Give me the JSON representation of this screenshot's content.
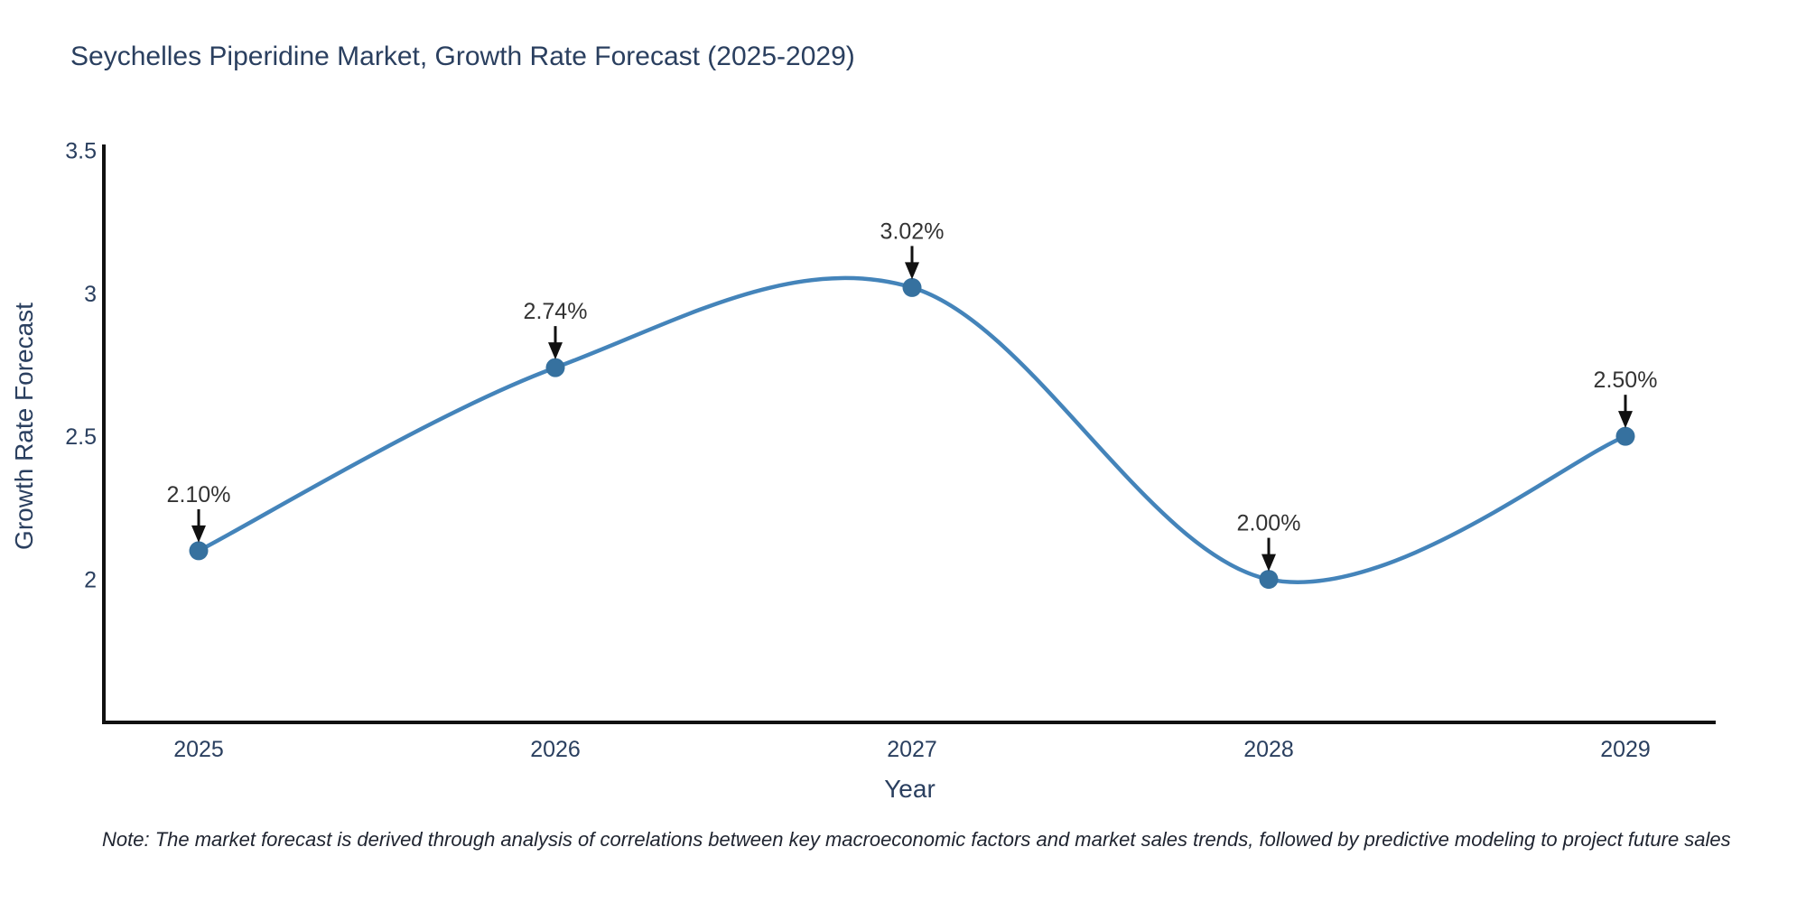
{
  "note": "Note: The market forecast is derived through analysis of correlations between key macroeconomic factors and market sales trends, followed by predictive modeling to project future sales",
  "chart_data": {
    "type": "line",
    "title": "Seychelles Piperidine Market, Growth Rate Forecast (2025-2029)",
    "xlabel": "Year",
    "ylabel": "Growth Rate Forecast",
    "categories": [
      "2025",
      "2026",
      "2027",
      "2028",
      "2029"
    ],
    "values": [
      2.1,
      2.74,
      3.02,
      2.0,
      2.5
    ],
    "point_labels": [
      "2.10%",
      "2.74%",
      "3.02%",
      "2.00%",
      "2.50%"
    ],
    "yticks": [
      2,
      2.5,
      3,
      3.5
    ],
    "ylim": [
      1.5,
      3.52
    ],
    "line_shape": "spline",
    "grid": false,
    "legend_position": "none",
    "colors": {
      "line": "#4484ba",
      "marker": "#36719f",
      "axis": "#111111",
      "text": "#2a3f5f",
      "annotation_text": "#333333",
      "annotation_arrow": "#111111",
      "background": "#ffffff"
    }
  }
}
